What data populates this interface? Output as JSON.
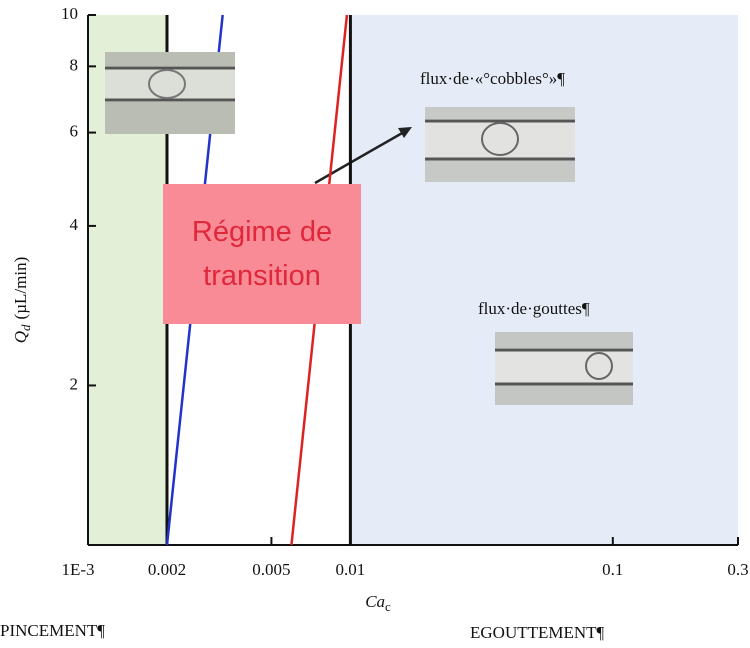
{
  "chart_data": {
    "type": "line",
    "x_label": "Ca",
    "x_label_subscript": "c",
    "y_label": "Q",
    "y_label_subscript": "d",
    "y_label_unit": "(µL/min)",
    "xscale": "log",
    "yscale": "log",
    "xlim": [
      0.001,
      0.3
    ],
    "ylim": [
      1,
      10
    ],
    "xticks": [
      {
        "value": 0.001,
        "label": "1E-3"
      },
      0.002,
      0.005,
      0.01,
      0.1,
      0.3
    ],
    "yticks": [
      2,
      4,
      6,
      8,
      10
    ],
    "regions": [
      {
        "name": "PINCEMENT¶",
        "from": 0.001,
        "to": 0.002,
        "color": "#e3efd6",
        "text_color": "#2f9b58"
      },
      {
        "name": "Régime de transition",
        "from": 0.002,
        "to": 0.01,
        "color": "#ffffff"
      },
      {
        "name": "EGOUTTEMENT¶",
        "from": 0.01,
        "to": 0.3,
        "color": "#e6ecf7",
        "text_color": "#2a62b5"
      }
    ],
    "boundaries": [
      0.002,
      0.01
    ],
    "series": [
      {
        "color": "#2233cc",
        "x": [
          0.002,
          0.00326
        ],
        "values": [
          1,
          10
        ]
      },
      {
        "color": "#dd2222",
        "x": [
          0.00596,
          0.0097
        ],
        "values": [
          1,
          10
        ]
      }
    ],
    "annotations": [
      "flux·de·«°cobbles°»¶",
      "flux·de·gouttes¶"
    ]
  }
}
